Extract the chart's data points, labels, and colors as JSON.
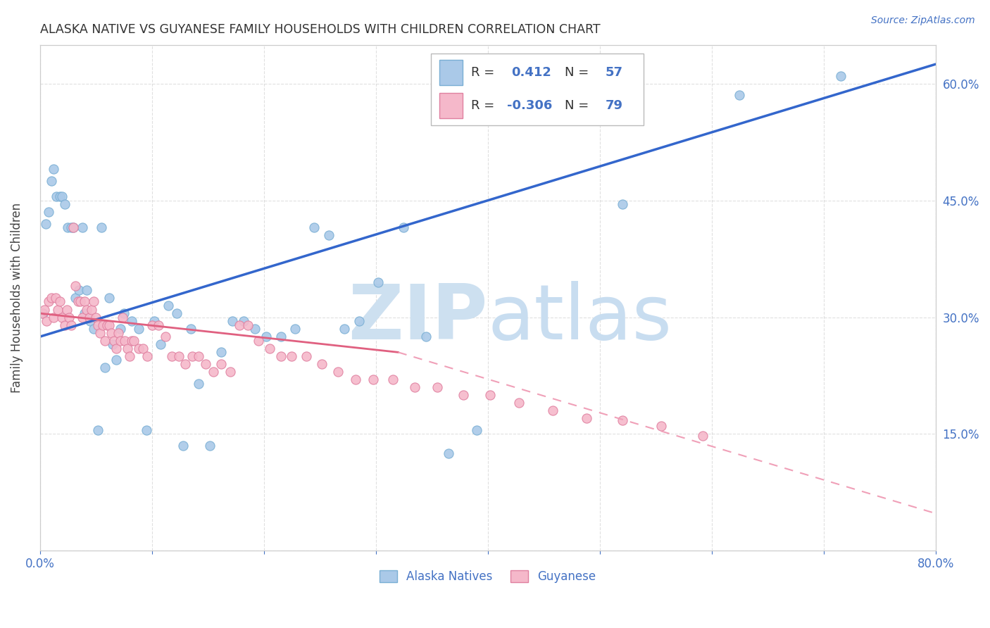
{
  "title": "ALASKA NATIVE VS GUYANESE FAMILY HOUSEHOLDS WITH CHILDREN CORRELATION CHART",
  "source": "Source: ZipAtlas.com",
  "ylabel": "Family Households with Children",
  "xlim": [
    0.0,
    0.8
  ],
  "ylim": [
    0.0,
    0.65
  ],
  "watermark_zip_color": "#cde0f0",
  "watermark_atlas_color": "#c8ddf0",
  "background_color": "#ffffff",
  "grid_color": "#cccccc",
  "alaska_color": "#aac9e8",
  "alaska_edge_color": "#7aafd4",
  "guyanese_color": "#f5b8ca",
  "guyanese_edge_color": "#e080a0",
  "alaska_line_color": "#3366cc",
  "guyanese_line_solid_color": "#e06080",
  "guyanese_line_dash_color": "#f0a0b8",
  "legend_text_color": "#4472c4",
  "alaska_R": 0.412,
  "alaska_N": 57,
  "guyanese_R": -0.306,
  "guyanese_N": 79,
  "alaska_line_x0": 0.0,
  "alaska_line_y0": 0.275,
  "alaska_line_x1": 0.8,
  "alaska_line_y1": 0.625,
  "guyanese_line_solid_x0": 0.0,
  "guyanese_line_solid_y0": 0.305,
  "guyanese_line_solid_x1": 0.32,
  "guyanese_line_solid_y1": 0.255,
  "guyanese_line_dash_x0": 0.32,
  "guyanese_line_dash_y0": 0.255,
  "guyanese_line_dash_x1": 0.8,
  "guyanese_line_dash_y1": 0.048,
  "alaska_natives_x": [
    0.003,
    0.005,
    0.008,
    0.01,
    0.012,
    0.015,
    0.018,
    0.02,
    0.022,
    0.025,
    0.028,
    0.03,
    0.032,
    0.035,
    0.038,
    0.04,
    0.042,
    0.045,
    0.048,
    0.052,
    0.055,
    0.058,
    0.062,
    0.065,
    0.068,
    0.072,
    0.075,
    0.082,
    0.088,
    0.095,
    0.102,
    0.108,
    0.115,
    0.122,
    0.128,
    0.135,
    0.142,
    0.152,
    0.162,
    0.172,
    0.182,
    0.192,
    0.202,
    0.215,
    0.228,
    0.245,
    0.258,
    0.272,
    0.285,
    0.302,
    0.325,
    0.345,
    0.365,
    0.39,
    0.52,
    0.625,
    0.715
  ],
  "alaska_natives_y": [
    0.305,
    0.42,
    0.435,
    0.475,
    0.49,
    0.455,
    0.455,
    0.455,
    0.445,
    0.415,
    0.415,
    0.415,
    0.325,
    0.335,
    0.415,
    0.305,
    0.335,
    0.295,
    0.285,
    0.155,
    0.415,
    0.235,
    0.325,
    0.265,
    0.245,
    0.285,
    0.305,
    0.295,
    0.285,
    0.155,
    0.295,
    0.265,
    0.315,
    0.305,
    0.135,
    0.285,
    0.215,
    0.135,
    0.255,
    0.295,
    0.295,
    0.285,
    0.275,
    0.275,
    0.285,
    0.415,
    0.405,
    0.285,
    0.295,
    0.345,
    0.415,
    0.275,
    0.125,
    0.155,
    0.445,
    0.585,
    0.61
  ],
  "guyanese_x": [
    0.002,
    0.004,
    0.006,
    0.008,
    0.01,
    0.012,
    0.014,
    0.016,
    0.018,
    0.02,
    0.022,
    0.024,
    0.026,
    0.028,
    0.03,
    0.032,
    0.034,
    0.036,
    0.038,
    0.04,
    0.042,
    0.044,
    0.046,
    0.048,
    0.05,
    0.052,
    0.054,
    0.056,
    0.058,
    0.06,
    0.062,
    0.064,
    0.066,
    0.068,
    0.07,
    0.072,
    0.074,
    0.076,
    0.078,
    0.08,
    0.082,
    0.084,
    0.088,
    0.092,
    0.096,
    0.1,
    0.106,
    0.112,
    0.118,
    0.124,
    0.13,
    0.136,
    0.142,
    0.148,
    0.155,
    0.162,
    0.17,
    0.178,
    0.186,
    0.195,
    0.205,
    0.215,
    0.225,
    0.238,
    0.252,
    0.266,
    0.282,
    0.298,
    0.315,
    0.335,
    0.355,
    0.378,
    0.402,
    0.428,
    0.458,
    0.488,
    0.52,
    0.555,
    0.592
  ],
  "guyanese_y": [
    0.305,
    0.31,
    0.295,
    0.32,
    0.325,
    0.3,
    0.325,
    0.31,
    0.32,
    0.3,
    0.29,
    0.31,
    0.3,
    0.29,
    0.415,
    0.34,
    0.32,
    0.32,
    0.3,
    0.32,
    0.31,
    0.3,
    0.31,
    0.32,
    0.3,
    0.29,
    0.28,
    0.29,
    0.27,
    0.29,
    0.29,
    0.28,
    0.27,
    0.26,
    0.28,
    0.27,
    0.3,
    0.27,
    0.26,
    0.25,
    0.27,
    0.27,
    0.26,
    0.26,
    0.25,
    0.29,
    0.29,
    0.275,
    0.25,
    0.25,
    0.24,
    0.25,
    0.25,
    0.24,
    0.23,
    0.24,
    0.23,
    0.29,
    0.29,
    0.27,
    0.26,
    0.25,
    0.25,
    0.25,
    0.24,
    0.23,
    0.22,
    0.22,
    0.22,
    0.21,
    0.21,
    0.2,
    0.2,
    0.19,
    0.18,
    0.17,
    0.168,
    0.16,
    0.148
  ]
}
